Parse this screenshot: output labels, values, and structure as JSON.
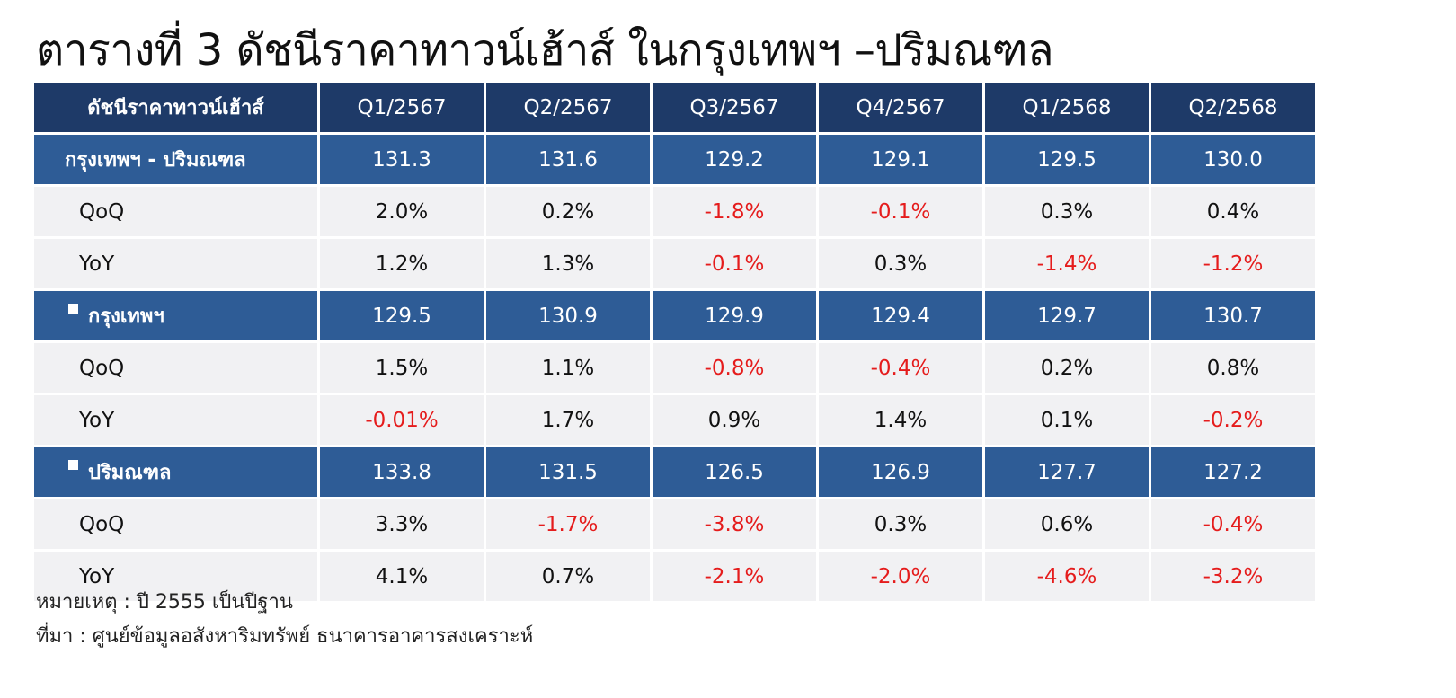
{
  "title": "ตารางที่ 3 ดัชนีราคาทาวน์เฮ้าส์ ในกรุงเทพฯ –ปริมณฑล",
  "table": {
    "header": {
      "label": "ดัชนีราคาทาวน์เฮ้าส์",
      "quarters": [
        "Q1/2567",
        "Q2/2567",
        "Q3/2567",
        "Q4/2567",
        "Q1/2568",
        "Q2/2568"
      ]
    },
    "groups": [
      {
        "label": "กรุงเทพฯ - ปริมณฑล",
        "bullet": false,
        "values": [
          "131.3",
          "131.6",
          "129.2",
          "129.1",
          "129.5",
          "130.0"
        ],
        "rows": [
          {
            "label": "QoQ",
            "values": [
              "2.0%",
              "0.2%",
              "-1.8%",
              "-0.1%",
              "0.3%",
              "0.4%"
            ]
          },
          {
            "label": "YoY",
            "values": [
              "1.2%",
              "1.3%",
              "-0.1%",
              "0.3%",
              "-1.4%",
              "-1.2%"
            ]
          }
        ]
      },
      {
        "label": "กรุงเทพฯ",
        "bullet": true,
        "values": [
          "129.5",
          "130.9",
          "129.9",
          "129.4",
          "129.7",
          "130.7"
        ],
        "rows": [
          {
            "label": "QoQ",
            "values": [
              "1.5%",
              "1.1%",
              "-0.8%",
              "-0.4%",
              "0.2%",
              "0.8%"
            ]
          },
          {
            "label": "YoY",
            "values": [
              "-0.01%",
              "1.7%",
              "0.9%",
              "1.4%",
              "0.1%",
              "-0.2%"
            ]
          }
        ]
      },
      {
        "label": "ปริมณฑล",
        "bullet": true,
        "values": [
          "133.8",
          "131.5",
          "126.5",
          "126.9",
          "127.7",
          "127.2"
        ],
        "rows": [
          {
            "label": "QoQ",
            "values": [
              "3.3%",
              "-1.7%",
              "-3.8%",
              "0.3%",
              "0.6%",
              "-0.4%"
            ]
          },
          {
            "label": "YoY",
            "values": [
              "4.1%",
              "0.7%",
              "-2.1%",
              "-2.0%",
              "-4.6%",
              "-3.2%"
            ]
          }
        ]
      }
    ]
  },
  "notes": {
    "remark": "หมายเหตุ : ปี 2555 เป็นปีฐาน",
    "source": "ที่มา : ศูนย์ข้อมูลอสังหาริมทรัพย์ ธนาคารอาคารสงเคราะห์"
  },
  "colors": {
    "header_bg": "#1e3a68",
    "group_bg": "#2e5c96",
    "row_bg": "#f1f1f3",
    "negative_text": "#e51c1c"
  }
}
